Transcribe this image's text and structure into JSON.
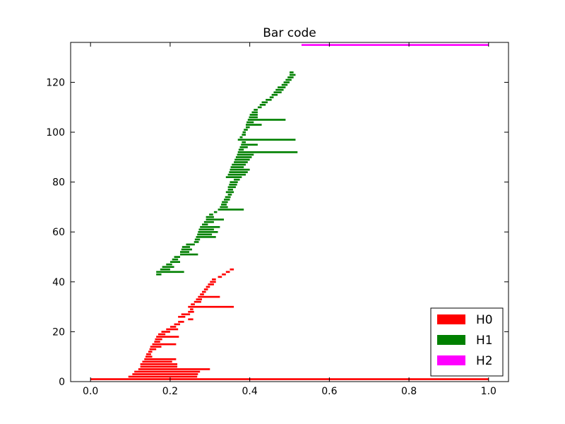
{
  "chart_data": {
    "type": "bar",
    "orientation": "horizontal",
    "title": "Bar code",
    "xlabel": "",
    "ylabel": "",
    "xlim": [
      -0.05,
      1.05
    ],
    "ylim": [
      0,
      136
    ],
    "xticks": [
      "0.0",
      "0.2",
      "0.4",
      "0.6",
      "0.8",
      "1.0"
    ],
    "yticks": [
      "0",
      "20",
      "40",
      "60",
      "80",
      "100",
      "120"
    ],
    "grid": false,
    "legend": "bottom-right",
    "series": [
      {
        "name": "H0",
        "color": "#ff0000",
        "bars": [
          [
            0.0,
            1.0
          ],
          [
            0.095,
            0.268
          ],
          [
            0.105,
            0.27
          ],
          [
            0.11,
            0.275
          ],
          [
            0.12,
            0.3
          ],
          [
            0.125,
            0.218
          ],
          [
            0.125,
            0.218
          ],
          [
            0.13,
            0.205
          ],
          [
            0.135,
            0.215
          ],
          [
            0.138,
            0.155
          ],
          [
            0.14,
            0.152
          ],
          [
            0.145,
            0.155
          ],
          [
            0.148,
            0.165
          ],
          [
            0.15,
            0.178
          ],
          [
            0.155,
            0.215
          ],
          [
            0.16,
            0.175
          ],
          [
            0.162,
            0.18
          ],
          [
            0.165,
            0.222
          ],
          [
            0.17,
            0.188
          ],
          [
            0.178,
            0.2
          ],
          [
            0.19,
            0.22
          ],
          [
            0.2,
            0.215
          ],
          [
            0.21,
            0.225
          ],
          [
            0.22,
            0.235
          ],
          [
            0.245,
            0.258
          ],
          [
            0.22,
            0.238
          ],
          [
            0.228,
            0.25
          ],
          [
            0.245,
            0.26
          ],
          [
            0.25,
            0.258
          ],
          [
            0.245,
            0.36
          ],
          [
            0.252,
            0.262
          ],
          [
            0.26,
            0.278
          ],
          [
            0.265,
            0.28
          ],
          [
            0.27,
            0.325
          ],
          [
            0.275,
            0.285
          ],
          [
            0.28,
            0.29
          ],
          [
            0.285,
            0.295
          ],
          [
            0.29,
            0.3
          ],
          [
            0.295,
            0.31
          ],
          [
            0.3,
            0.315
          ],
          [
            0.305,
            0.315
          ],
          [
            0.32,
            0.33
          ],
          [
            0.33,
            0.34
          ],
          [
            0.34,
            0.35
          ],
          [
            0.35,
            0.36
          ]
        ]
      },
      {
        "name": "H1",
        "color": "#008000",
        "bars": [
          [
            0.165,
            0.178
          ],
          [
            0.165,
            0.235
          ],
          [
            0.175,
            0.2
          ],
          [
            0.18,
            0.21
          ],
          [
            0.19,
            0.205
          ],
          [
            0.2,
            0.225
          ],
          [
            0.205,
            0.22
          ],
          [
            0.21,
            0.225
          ],
          [
            0.225,
            0.27
          ],
          [
            0.225,
            0.248
          ],
          [
            0.228,
            0.255
          ],
          [
            0.23,
            0.25
          ],
          [
            0.24,
            0.262
          ],
          [
            0.26,
            0.272
          ],
          [
            0.262,
            0.275
          ],
          [
            0.265,
            0.315
          ],
          [
            0.268,
            0.305
          ],
          [
            0.27,
            0.32
          ],
          [
            0.272,
            0.31
          ],
          [
            0.275,
            0.325
          ],
          [
            0.28,
            0.295
          ],
          [
            0.285,
            0.31
          ],
          [
            0.29,
            0.335
          ],
          [
            0.29,
            0.31
          ],
          [
            0.298,
            0.308
          ],
          [
            0.31,
            0.318
          ],
          [
            0.32,
            0.385
          ],
          [
            0.325,
            0.345
          ],
          [
            0.328,
            0.342
          ],
          [
            0.33,
            0.345
          ],
          [
            0.335,
            0.35
          ],
          [
            0.338,
            0.352
          ],
          [
            0.345,
            0.355
          ],
          [
            0.34,
            0.36
          ],
          [
            0.345,
            0.358
          ],
          [
            0.345,
            0.365
          ],
          [
            0.348,
            0.368
          ],
          [
            0.35,
            0.37
          ],
          [
            0.36,
            0.375
          ],
          [
            0.34,
            0.38
          ],
          [
            0.345,
            0.39
          ],
          [
            0.348,
            0.395
          ],
          [
            0.35,
            0.4
          ],
          [
            0.352,
            0.385
          ],
          [
            0.355,
            0.39
          ],
          [
            0.36,
            0.395
          ],
          [
            0.362,
            0.4
          ],
          [
            0.365,
            0.405
          ],
          [
            0.368,
            0.41
          ],
          [
            0.37,
            0.52
          ],
          [
            0.372,
            0.385
          ],
          [
            0.375,
            0.395
          ],
          [
            0.378,
            0.42
          ],
          [
            0.38,
            0.39
          ],
          [
            0.37,
            0.515
          ],
          [
            0.375,
            0.382
          ],
          [
            0.38,
            0.39
          ],
          [
            0.382,
            0.39
          ],
          [
            0.385,
            0.395
          ],
          [
            0.39,
            0.4
          ],
          [
            0.39,
            0.43
          ],
          [
            0.392,
            0.41
          ],
          [
            0.395,
            0.49
          ],
          [
            0.398,
            0.42
          ],
          [
            0.4,
            0.42
          ],
          [
            0.405,
            0.42
          ],
          [
            0.41,
            0.42
          ],
          [
            0.42,
            0.43
          ],
          [
            0.425,
            0.44
          ],
          [
            0.43,
            0.445
          ],
          [
            0.44,
            0.455
          ],
          [
            0.45,
            0.46
          ],
          [
            0.455,
            0.47
          ],
          [
            0.46,
            0.48
          ],
          [
            0.465,
            0.485
          ],
          [
            0.47,
            0.49
          ],
          [
            0.48,
            0.495
          ],
          [
            0.485,
            0.5
          ],
          [
            0.49,
            0.505
          ],
          [
            0.495,
            0.51
          ],
          [
            0.5,
            0.515
          ],
          [
            0.5,
            0.51
          ]
        ]
      },
      {
        "name": "H2",
        "color": "#ff00ff",
        "bars": [
          [
            0.53,
            1.0
          ]
        ]
      }
    ]
  }
}
